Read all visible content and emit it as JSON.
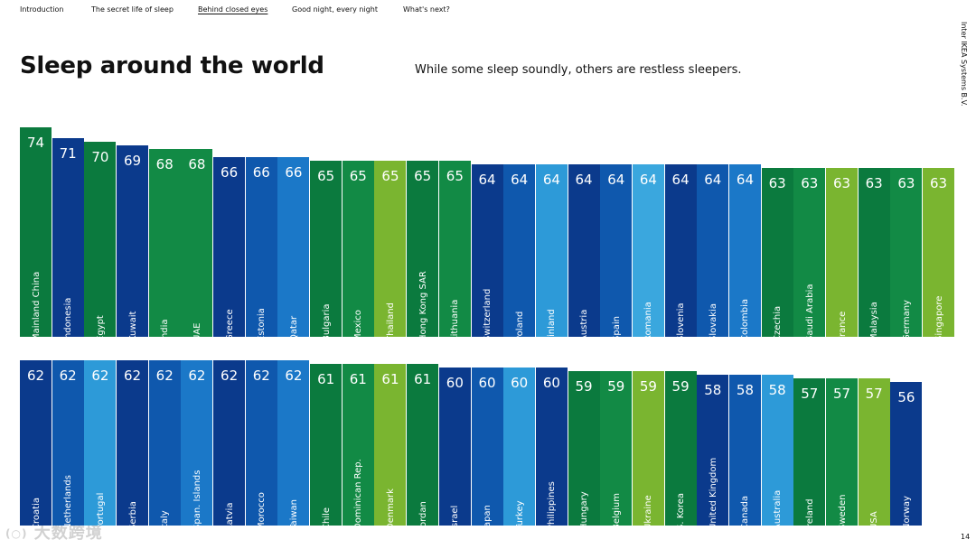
{
  "nav": {
    "items": [
      {
        "label": "Introduction",
        "active": false
      },
      {
        "label": "The secret life of sleep",
        "active": false
      },
      {
        "label": "Behind closed eyes",
        "active": true
      },
      {
        "label": "Good night, every night",
        "active": false
      },
      {
        "label": "What's next?",
        "active": false
      }
    ]
  },
  "header": {
    "title": "Sleep around the world",
    "subtitle": "While some sleep soundly, others are restless sleepers."
  },
  "side_text": "Inter IKEA Systems B.V.",
  "page_number": "14",
  "watermark": {
    "logo_text": "(○)",
    "text": "大数跨境"
  },
  "colors": {
    "dark_green": "#0b7a3e",
    "green": "#128a45",
    "lime": "#7ab530",
    "navy": "#0b3a8c",
    "blue": "#0f58ad",
    "mid_blue": "#1b78c8",
    "sky": "#2d9ad8",
    "light_sky": "#3aa7de"
  },
  "chart_data": {
    "type": "bar",
    "title": "Sleep around the world",
    "subtitle": "While some sleep soundly, others are restless sleepers.",
    "orientation": "vertical",
    "value_labels": "inside-top",
    "category_labels": "inside-rotated",
    "rows": [
      {
        "bars": [
          {
            "category": "Mainland China",
            "value": 74,
            "color": "#0b7a3e"
          },
          {
            "category": "Indonesia",
            "value": 71,
            "color": "#0b3a8c"
          },
          {
            "category": "Egypt",
            "value": 70,
            "color": "#0b7a3e"
          },
          {
            "category": "Kuwait",
            "value": 69,
            "color": "#0b3a8c"
          },
          {
            "category": "India",
            "value": 68,
            "color": "#128a45"
          },
          {
            "category": "UAE",
            "value": 68,
            "color": "#128a45"
          },
          {
            "category": "Greece",
            "value": 66,
            "color": "#0b3a8c"
          },
          {
            "category": "Estonia",
            "value": 66,
            "color": "#0f58ad"
          },
          {
            "category": "Qatar",
            "value": 66,
            "color": "#1b78c8"
          },
          {
            "category": "Bulgaria",
            "value": 65,
            "color": "#0b7a3e"
          },
          {
            "category": "Mexico",
            "value": 65,
            "color": "#128a45"
          },
          {
            "category": "Thailand",
            "value": 65,
            "color": "#7ab530"
          },
          {
            "category": "Hong Kong SAR",
            "value": 65,
            "color": "#0b7a3e"
          },
          {
            "category": "Lithuania",
            "value": 65,
            "color": "#128a45"
          },
          {
            "category": "Switzerland",
            "value": 64,
            "color": "#0b3a8c"
          },
          {
            "category": "Poland",
            "value": 64,
            "color": "#0f58ad"
          },
          {
            "category": "Finland",
            "value": 64,
            "color": "#2d9ad8"
          },
          {
            "category": "Austria",
            "value": 64,
            "color": "#0b3a8c"
          },
          {
            "category": "Spain",
            "value": 64,
            "color": "#0f58ad"
          },
          {
            "category": "Romania",
            "value": 64,
            "color": "#3aa7de"
          },
          {
            "category": "Slovenia",
            "value": 64,
            "color": "#0b3a8c"
          },
          {
            "category": "Slovakia",
            "value": 64,
            "color": "#0f58ad"
          },
          {
            "category": "Colombia",
            "value": 64,
            "color": "#1b78c8"
          },
          {
            "category": "Czechia",
            "value": 63,
            "color": "#0b7a3e"
          },
          {
            "category": "Saudi Arabia",
            "value": 63,
            "color": "#128a45"
          },
          {
            "category": "France",
            "value": 63,
            "color": "#7ab530"
          },
          {
            "category": "Malaysia",
            "value": 63,
            "color": "#0b7a3e"
          },
          {
            "category": "Germany",
            "value": 63,
            "color": "#128a45"
          },
          {
            "category": "Singapore",
            "value": 63,
            "color": "#7ab530"
          }
        ]
      },
      {
        "bars": [
          {
            "category": "Croatia",
            "value": 62,
            "color": "#0b3a8c"
          },
          {
            "category": "Netherlands",
            "value": 62,
            "color": "#0f58ad"
          },
          {
            "category": "Portugal",
            "value": 62,
            "color": "#2d9ad8"
          },
          {
            "category": "Serbia",
            "value": 62,
            "color": "#0b3a8c"
          },
          {
            "category": "Italy",
            "value": 62,
            "color": "#0f58ad"
          },
          {
            "category": "Span. Islands",
            "value": 62,
            "color": "#1b78c8"
          },
          {
            "category": "Latvia",
            "value": 62,
            "color": "#0b3a8c"
          },
          {
            "category": "Morocco",
            "value": 62,
            "color": "#0f58ad"
          },
          {
            "category": "Taiwan",
            "value": 62,
            "color": "#1b78c8"
          },
          {
            "category": "Chile",
            "value": 61,
            "color": "#0b7a3e"
          },
          {
            "category": "Dominican Rep.",
            "value": 61,
            "color": "#128a45"
          },
          {
            "category": "Denmark",
            "value": 61,
            "color": "#7ab530"
          },
          {
            "category": "Jordan",
            "value": 61,
            "color": "#0b7a3e"
          },
          {
            "category": "Israel",
            "value": 60,
            "color": "#0b3a8c"
          },
          {
            "category": "Japan",
            "value": 60,
            "color": "#0f58ad"
          },
          {
            "category": "Turkey",
            "value": 60,
            "color": "#2d9ad8"
          },
          {
            "category": "Philippines",
            "value": 60,
            "color": "#0b3a8c"
          },
          {
            "category": "Hungary",
            "value": 59,
            "color": "#0b7a3e"
          },
          {
            "category": "Belgium",
            "value": 59,
            "color": "#128a45"
          },
          {
            "category": "Ukraine",
            "value": 59,
            "color": "#7ab530"
          },
          {
            "category": "S. Korea",
            "value": 59,
            "color": "#0b7a3e"
          },
          {
            "category": "United Kingdom",
            "value": 58,
            "color": "#0b3a8c"
          },
          {
            "category": "Canada",
            "value": 58,
            "color": "#0f58ad"
          },
          {
            "category": "Australia",
            "value": 58,
            "color": "#2d9ad8"
          },
          {
            "category": "Ireland",
            "value": 57,
            "color": "#0b7a3e"
          },
          {
            "category": "Sweden",
            "value": 57,
            "color": "#128a45"
          },
          {
            "category": "USA",
            "value": 57,
            "color": "#7ab530"
          },
          {
            "category": "Norway",
            "value": 56,
            "color": "#0b3a8c"
          }
        ]
      }
    ]
  }
}
